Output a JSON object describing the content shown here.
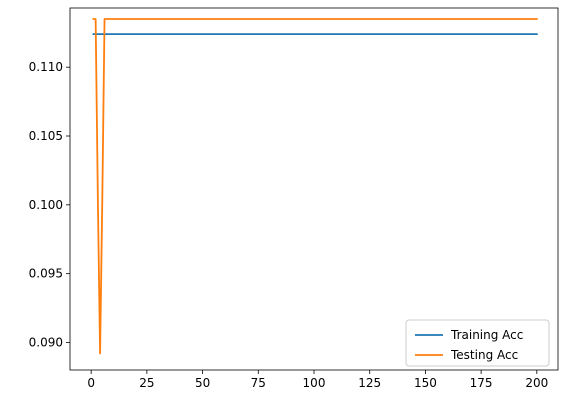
{
  "chart_data": {
    "type": "line",
    "title": "",
    "xlabel": "",
    "ylabel": "",
    "xlim": [
      -9.5,
      209.5
    ],
    "ylim": [
      0.088,
      0.1143
    ],
    "x_ticks": [
      0,
      25,
      50,
      75,
      100,
      125,
      150,
      175,
      200
    ],
    "x_tick_labels": [
      "0",
      "25",
      "50",
      "75",
      "100",
      "125",
      "150",
      "175",
      "200"
    ],
    "y_ticks": [
      0.09,
      0.095,
      0.1,
      0.105,
      0.11
    ],
    "y_tick_labels": [
      "0.090",
      "0.095",
      "0.100",
      "0.105",
      "0.110"
    ],
    "grid": false,
    "legend_position": "lower-right",
    "series": [
      {
        "name": "Training Acc",
        "color": "#1f77b4",
        "x": [
          1,
          200
        ],
        "y": [
          0.1124,
          0.1124
        ]
      },
      {
        "name": "Testing Acc",
        "color": "#ff7f0e",
        "x": [
          1,
          2,
          3,
          4,
          5,
          6,
          200
        ],
        "y": [
          0.1135,
          0.1135,
          0.1005,
          0.0892,
          0.1005,
          0.1135,
          0.1135
        ]
      }
    ]
  }
}
